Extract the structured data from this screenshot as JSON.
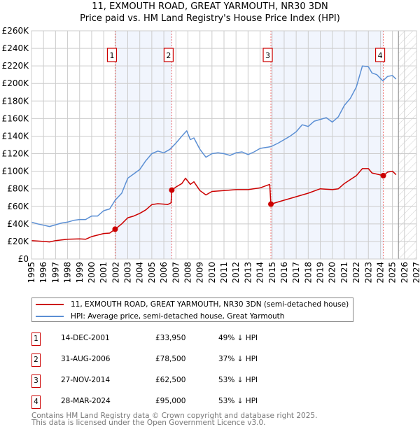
{
  "title": "11, EXMOUTH ROAD, GREAT YARMOUTH, NR30 3DN",
  "subtitle": "Price paid vs. HM Land Registry's House Price Index (HPI)",
  "chart_data": {
    "type": "line",
    "ylim": [
      0,
      260000
    ],
    "xlim": [
      1995,
      2027
    ],
    "yticks": [
      0,
      20000,
      40000,
      60000,
      80000,
      100000,
      120000,
      140000,
      160000,
      180000,
      200000,
      220000,
      240000,
      260000
    ],
    "ytick_labels": [
      "£0",
      "£20K",
      "£40K",
      "£60K",
      "£80K",
      "£100K",
      "£120K",
      "£140K",
      "£160K",
      "£180K",
      "£200K",
      "£220K",
      "£240K",
      "£260K"
    ],
    "xtick_labels": [
      "1995",
      "1996",
      "1997",
      "1998",
      "1999",
      "2000",
      "2001",
      "2002",
      "2003",
      "2004",
      "2005",
      "2006",
      "2007",
      "2008",
      "2009",
      "2010",
      "2011",
      "2012",
      "2013",
      "2014",
      "2015",
      "2016",
      "2017",
      "2018",
      "2019",
      "2020",
      "2021",
      "2022",
      "2023",
      "2024",
      "2025",
      "2026",
      "2027"
    ],
    "grid": true,
    "shaded_periods": [
      [
        2001.95,
        2006.66
      ],
      [
        2014.9,
        2024.24
      ]
    ],
    "forecast_hatch_from": 2025.5,
    "series": [
      {
        "name": "11, EXMOUTH ROAD, GREAT YARMOUTH, NR30 3DN (semi-detached house)",
        "color": "#cc0000",
        "x": [
          1995,
          1996,
          1996.5,
          1997,
          1998,
          1999,
          1999.5,
          2000,
          2001,
          2001.5,
          2001.95,
          2002.5,
          2003,
          2003.5,
          2004,
          2004.5,
          2005,
          2005.5,
          2006,
          2006.3,
          2006.6,
          2006.66,
          2007,
          2007.5,
          2007.8,
          2008.2,
          2008.5,
          2009,
          2009.5,
          2010,
          2011,
          2012,
          2013,
          2014,
          2014.8,
          2014.9,
          2015.5,
          2016,
          2017,
          2018,
          2019,
          2020,
          2020.5,
          2021,
          2022,
          2022.5,
          2023,
          2023.3,
          2024.24,
          2024.6,
          2025,
          2025.3
        ],
        "y": [
          21000,
          20000,
          19500,
          21000,
          22500,
          23000,
          22500,
          25500,
          29000,
          29500,
          33950,
          40000,
          47000,
          49000,
          52000,
          56000,
          62000,
          63000,
          62500,
          62000,
          64000,
          78500,
          82000,
          86000,
          92000,
          85000,
          88000,
          78000,
          73000,
          77000,
          78000,
          79000,
          79000,
          81000,
          85000,
          62500,
          65000,
          67000,
          71000,
          75000,
          80000,
          79000,
          80000,
          86000,
          95000,
          103000,
          103000,
          98000,
          95000,
          99000,
          100000,
          96000
        ]
      },
      {
        "name": "HPI: Average price, semi-detached house, Great Yarmouth",
        "color": "#5b8fd4",
        "x": [
          1995,
          1995.5,
          1996,
          1996.5,
          1997,
          1997.5,
          1998,
          1998.5,
          1999,
          1999.5,
          2000,
          2000.5,
          2001,
          2001.5,
          2001.95,
          2002.5,
          2003,
          2003.5,
          2004,
          2004.5,
          2005,
          2005.5,
          2006,
          2006.5,
          2007,
          2007.5,
          2007.9,
          2008.2,
          2008.5,
          2009,
          2009.5,
          2010,
          2010.5,
          2011,
          2011.5,
          2012,
          2012.5,
          2013,
          2013.5,
          2014,
          2014.9,
          2015.5,
          2016,
          2016.5,
          2017,
          2017.5,
          2018,
          2018.5,
          2019,
          2019.5,
          2020,
          2020.5,
          2021,
          2021.5,
          2022,
          2022.5,
          2023,
          2023.3,
          2023.7,
          2024.2,
          2024.6,
          2025,
          2025.3
        ],
        "y": [
          42000,
          40000,
          38500,
          37000,
          39000,
          41000,
          42000,
          44000,
          45000,
          45000,
          49000,
          49000,
          55000,
          57000,
          67000,
          75000,
          92000,
          97000,
          102000,
          112000,
          120000,
          123000,
          121000,
          125000,
          132000,
          140000,
          146000,
          136000,
          138000,
          125000,
          116000,
          120000,
          121000,
          120000,
          118000,
          121000,
          122000,
          119000,
          122000,
          126000,
          128000,
          132000,
          136000,
          140000,
          145000,
          153000,
          151000,
          157000,
          159000,
          161000,
          156000,
          162000,
          175000,
          183000,
          196000,
          220000,
          219000,
          212000,
          210000,
          203000,
          208000,
          209000,
          205000
        ]
      }
    ],
    "sales": [
      {
        "label": "1",
        "x": 2001.95,
        "y": 33950
      },
      {
        "label": "2",
        "x": 2006.66,
        "y": 78500
      },
      {
        "label": "3",
        "x": 2014.9,
        "y": 62500
      },
      {
        "label": "4",
        "x": 2024.24,
        "y": 95000
      }
    ]
  },
  "legend": {
    "property": "11, EXMOUTH ROAD, GREAT YARMOUTH, NR30 3DN (semi-detached house)",
    "hpi": "HPI: Average price, semi-detached house, Great Yarmouth"
  },
  "transactions": [
    {
      "num": "1",
      "date": "14-DEC-2001",
      "price": "£33,950",
      "hpi": "49% ↓ HPI"
    },
    {
      "num": "2",
      "date": "31-AUG-2006",
      "price": "£78,500",
      "hpi": "37% ↓ HPI"
    },
    {
      "num": "3",
      "date": "27-NOV-2014",
      "price": "£62,500",
      "hpi": "53% ↓ HPI"
    },
    {
      "num": "4",
      "date": "28-MAR-2024",
      "price": "£95,000",
      "hpi": "53% ↓ HPI"
    }
  ],
  "footer": {
    "line1": "Contains HM Land Registry data © Crown copyright and database right 2025.",
    "line2": "This data is licensed under the Open Government Licence v3.0."
  }
}
